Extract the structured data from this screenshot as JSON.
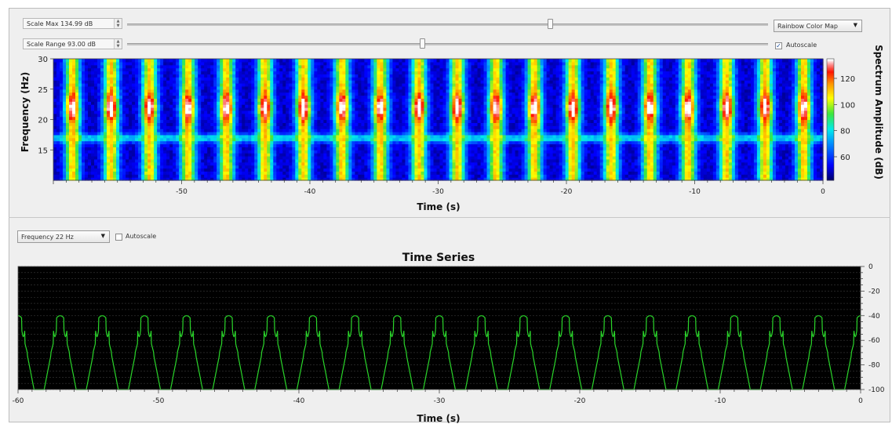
{
  "spectrogram_controls": {
    "scale_max_label": "Scale Max 134.99 dB",
    "scale_max_slider_fraction": 0.66,
    "scale_range_label": "Scale Range 93.00 dB",
    "scale_range_slider_fraction": 0.46,
    "colormap_selected": "Rainbow Color Map",
    "autoscale_label": "Autoscale",
    "autoscale_checked": true
  },
  "timeseries_controls": {
    "frequency_selected": "Frequency 22 Hz",
    "autoscale_label": "Autoscale",
    "autoscale_checked": false
  },
  "colors": {
    "panel_bg": "#efefef",
    "plot_bg": "#000000",
    "trace": "#2ad62a",
    "grid": "#3a3a3a"
  },
  "chart_data": [
    {
      "type": "heatmap",
      "title": "",
      "xlabel": "Time (s)",
      "ylabel": "Frequency (Hz)",
      "xlim": [
        -60,
        0
      ],
      "ylim": [
        10,
        30
      ],
      "x_ticks": [
        -50,
        -40,
        -30,
        -20,
        -10,
        0
      ],
      "y_ticks": [
        15,
        20,
        25,
        30
      ],
      "colorbar_label": "Spectrum Amplitude (dB)",
      "colorbar_range": [
        42,
        135
      ],
      "colorbar_ticks": [
        60,
        80,
        100,
        120
      ],
      "colormap": "rainbow",
      "period_s": 3.0,
      "hotspot_frequency_hz": 22,
      "band_frequency_hz": 17,
      "peak_db": 135,
      "floor_db": 45
    },
    {
      "type": "line",
      "title": "Time Series",
      "xlabel": "Time (s)",
      "ylabel": "",
      "xlim": [
        -60,
        0
      ],
      "ylim": [
        -100,
        0
      ],
      "x_ticks": [
        -60,
        -50,
        -40,
        -30,
        -20,
        -10,
        0
      ],
      "y_ticks": [
        0,
        -20,
        -40,
        -60,
        -80,
        -100
      ],
      "period_s": 3.0,
      "max_db": -40,
      "min_db": -100,
      "grid": true,
      "series": [
        {
          "values_description_only": ""
        }
      ]
    }
  ]
}
